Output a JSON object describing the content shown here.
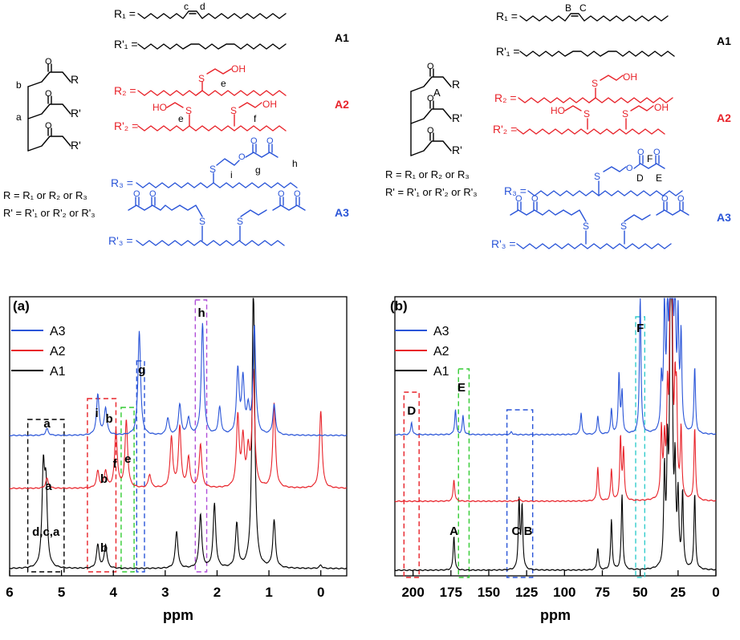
{
  "colors": {
    "A1": "#000000",
    "A2": "#e8232a",
    "A3": "#2a55d8",
    "violet": "#b04fd8",
    "green": "#33cc33",
    "cyan": "#33cccc",
    "blue_box": "#2a55d8",
    "red_box": "#e8232a",
    "black_box": "#000000"
  },
  "schemes": {
    "left": {
      "R1": "R₁ =",
      "R1p": "R'₁ =",
      "R2": "R₂ =",
      "R2p": "R'₂ =",
      "R3": "R₃ =",
      "R3p": "R'₃ =",
      "tag_A1": "A1",
      "tag_A2": "A2",
      "tag_A3": "A3",
      "letters": {
        "c": "c",
        "d": "d",
        "b": "b",
        "a": "a",
        "e1": "e",
        "e2": "e",
        "f": "f",
        "g": "g",
        "h": "h",
        "i": "i"
      },
      "atoms": {
        "R": "R",
        "Rp1": "R'",
        "Rp2": "R'",
        "S": "S",
        "OH": "OH",
        "HO": "HO",
        "O": "O"
      },
      "def1": "R = R₁ or R₂ or R₃",
      "def2": "R' = R'₁ or R'₂ or R'₃"
    },
    "right": {
      "R1": "R₁ =",
      "R1p": "R'₁ =",
      "R2": "R₂ =",
      "R2p": "R'₂ =",
      "R3": "R₃ =",
      "R3p": "R'₃ =",
      "tag_A1": "A1",
      "tag_A2": "A2",
      "tag_A3": "A3",
      "letters": {
        "B": "B",
        "C": "C",
        "A": "A",
        "D": "D",
        "E": "E",
        "F": "F"
      },
      "atoms": {
        "R": "R",
        "Rp1": "R'",
        "Rp2": "R'",
        "S": "S",
        "OH": "OH",
        "HO": "HO",
        "O": "O"
      },
      "def1": "R = R₁ or R₂ or R₃",
      "def2": "R' = R'₁ or R'₂ or R'₃"
    }
  },
  "chart_data": [
    {
      "panel": "(a)",
      "type": "line",
      "xlabel": "ppm",
      "xlim": [
        6,
        -0.5
      ],
      "x_reversed": true,
      "x_ticks": [
        6,
        5,
        4,
        3,
        2,
        1,
        0
      ],
      "legend": [
        "A3",
        "A2",
        "A1"
      ],
      "legend_position": "top-left",
      "series": [
        {
          "name": "A1",
          "peaks": [
            [
              5.35,
              0.28
            ],
            [
              5.3,
              0.22
            ],
            [
              4.3,
              0.07
            ],
            [
              4.15,
              0.07
            ],
            [
              2.78,
              0.11
            ],
            [
              2.32,
              0.16
            ],
            [
              2.05,
              0.19
            ],
            [
              1.62,
              0.13
            ],
            [
              1.3,
              0.85
            ],
            [
              0.9,
              0.14
            ],
            [
              0.0,
              0.01
            ]
          ]
        },
        {
          "name": "A2",
          "peaks": [
            [
              5.28,
              0.03
            ],
            [
              4.3,
              0.05
            ],
            [
              4.15,
              0.05
            ],
            [
              3.95,
              0.17
            ],
            [
              3.75,
              0.2
            ],
            [
              3.3,
              0.04
            ],
            [
              2.88,
              0.15
            ],
            [
              2.72,
              0.18
            ],
            [
              2.55,
              0.09
            ],
            [
              2.32,
              0.13
            ],
            [
              1.6,
              0.21
            ],
            [
              1.5,
              0.14
            ],
            [
              1.4,
              0.1
            ],
            [
              1.3,
              0.34
            ],
            [
              0.9,
              0.25
            ],
            [
              0.0,
              0.23
            ]
          ]
        },
        {
          "name": "A3",
          "peaks": [
            [
              5.28,
              0.02
            ],
            [
              4.3,
              0.12
            ],
            [
              4.15,
              0.08
            ],
            [
              3.5,
              0.31
            ],
            [
              2.95,
              0.05
            ],
            [
              2.72,
              0.09
            ],
            [
              2.55,
              0.05
            ],
            [
              2.28,
              0.33
            ],
            [
              1.95,
              0.08
            ],
            [
              1.6,
              0.19
            ],
            [
              1.5,
              0.16
            ],
            [
              1.4,
              0.07
            ],
            [
              1.28,
              0.32
            ],
            [
              0.9,
              0.09
            ]
          ]
        }
      ],
      "annotations": [
        {
          "text": "a",
          "series": "A3"
        },
        {
          "text": "i",
          "series": "A3"
        },
        {
          "text": "b",
          "series": "A3"
        },
        {
          "text": "g",
          "series": "A3"
        },
        {
          "text": "h",
          "series": "A3"
        },
        {
          "text": "a",
          "series": "A2"
        },
        {
          "text": "b",
          "series": "A2"
        },
        {
          "text": "f",
          "series": "A2"
        },
        {
          "text": "e",
          "series": "A2"
        },
        {
          "text": "d,c,a",
          "series": "A1"
        },
        {
          "text": "b",
          "series": "A1"
        }
      ],
      "highlight_boxes": [
        {
          "color": "black",
          "from": 5.65,
          "to": 4.95
        },
        {
          "color": "red",
          "from": 4.5,
          "to": 3.95
        },
        {
          "color": "green",
          "from": 3.85,
          "to": 3.6
        },
        {
          "color": "blue",
          "from": 3.55,
          "to": 3.4
        },
        {
          "color": "violet",
          "from": 2.42,
          "to": 2.2
        }
      ]
    },
    {
      "panel": "(b)",
      "type": "line",
      "xlabel": "ppm",
      "xlim": [
        212,
        0
      ],
      "x_reversed": true,
      "x_ticks": [
        200,
        175,
        150,
        125,
        100,
        75,
        50,
        25,
        0
      ],
      "legend": [
        "A3",
        "A2",
        "A1"
      ],
      "legend_position": "top-left",
      "series": [
        {
          "name": "A1",
          "peaks": [
            [
              173,
              0.11
            ],
            [
              130,
              0.22
            ],
            [
              128,
              0.2
            ],
            [
              78,
              0.07
            ],
            [
              69,
              0.16
            ],
            [
              62,
              0.24
            ],
            [
              34,
              0.3
            ],
            [
              32,
              0.34
            ],
            [
              30,
              0.95
            ],
            [
              29,
              0.55
            ],
            [
              27,
              0.3
            ],
            [
              25,
              0.22
            ],
            [
              22,
              0.24
            ],
            [
              14,
              0.24
            ]
          ]
        },
        {
          "name": "A2",
          "peaks": [
            [
              173,
              0.07
            ],
            [
              130,
              0.01
            ],
            [
              78,
              0.11
            ],
            [
              69,
              0.1
            ],
            [
              63,
              0.2
            ],
            [
              61,
              0.16
            ],
            [
              36,
              0.22
            ],
            [
              34,
              0.17
            ],
            [
              32,
              0.3
            ],
            [
              30,
              0.9
            ],
            [
              29,
              0.5
            ],
            [
              27,
              0.29
            ],
            [
              26,
              0.28
            ],
            [
              23,
              0.22
            ],
            [
              14,
              0.23
            ]
          ]
        },
        {
          "name": "A3",
          "peaks": [
            [
              201,
              0.04
            ],
            [
              172,
              0.08
            ],
            [
              167,
              0.06
            ],
            [
              135,
              0.01
            ],
            [
              89,
              0.07
            ],
            [
              78,
              0.06
            ],
            [
              69,
              0.08
            ],
            [
              64,
              0.19
            ],
            [
              62,
              0.13
            ],
            [
              50,
              0.44
            ],
            [
              36,
              0.16
            ],
            [
              34,
              0.4
            ],
            [
              32,
              0.35
            ],
            [
              30,
              0.75
            ],
            [
              29,
              0.7
            ],
            [
              27,
              0.43
            ],
            [
              25,
              0.34
            ],
            [
              23,
              0.3
            ],
            [
              14,
              0.21
            ]
          ]
        }
      ],
      "annotations": [
        {
          "text": "D",
          "series": "A3"
        },
        {
          "text": "E",
          "series": "A3"
        },
        {
          "text": "F",
          "series": "A3"
        },
        {
          "text": "A",
          "series": "A1"
        },
        {
          "text": "C",
          "series": "A1"
        },
        {
          "text": "B",
          "series": "A1"
        }
      ],
      "highlight_boxes": [
        {
          "color": "red",
          "from": 206,
          "to": 196
        },
        {
          "color": "green",
          "from": 170,
          "to": 163
        },
        {
          "color": "blue",
          "from": 138,
          "to": 121
        },
        {
          "color": "cyan",
          "from": 53,
          "to": 47
        }
      ]
    }
  ]
}
